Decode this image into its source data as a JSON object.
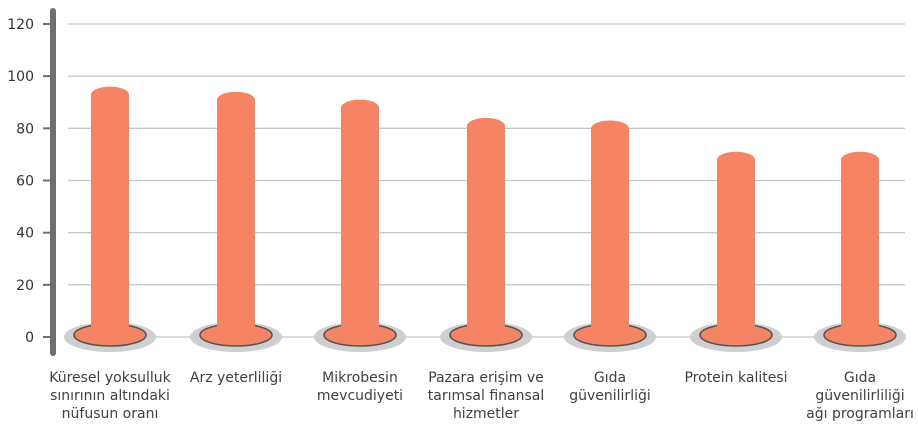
{
  "chart_data": {
    "type": "bar",
    "categories": [
      [
        "Küresel yoksulluk",
        "sınırının altındaki",
        "nüfusun oranı"
      ],
      [
        "Arz yeterliliği"
      ],
      [
        "Mikrobesin",
        "mevcudiyeti"
      ],
      [
        "Pazara erişim ve",
        "tarımsal finansal",
        "hizmetler"
      ],
      [
        "Gıda",
        "güvenilirliği"
      ],
      [
        "Protein kalitesi"
      ],
      [
        "Gıda",
        "güvenilirliliği",
        "ağı programları"
      ]
    ],
    "values": [
      96,
      94,
      91,
      84,
      83,
      71,
      71
    ],
    "yticks": [
      0,
      20,
      40,
      60,
      80,
      100,
      120
    ],
    "ylim": [
      0,
      120
    ],
    "grid": true,
    "title": "",
    "xlabel": "",
    "ylabel": "",
    "colors": {
      "bar": "#f58465",
      "base_ring": "#cfcfcf",
      "base_ellipse": "#f58465",
      "base_outline": "#555555",
      "axis": "#6e6e6e",
      "grid": "#c8c8c8"
    }
  }
}
